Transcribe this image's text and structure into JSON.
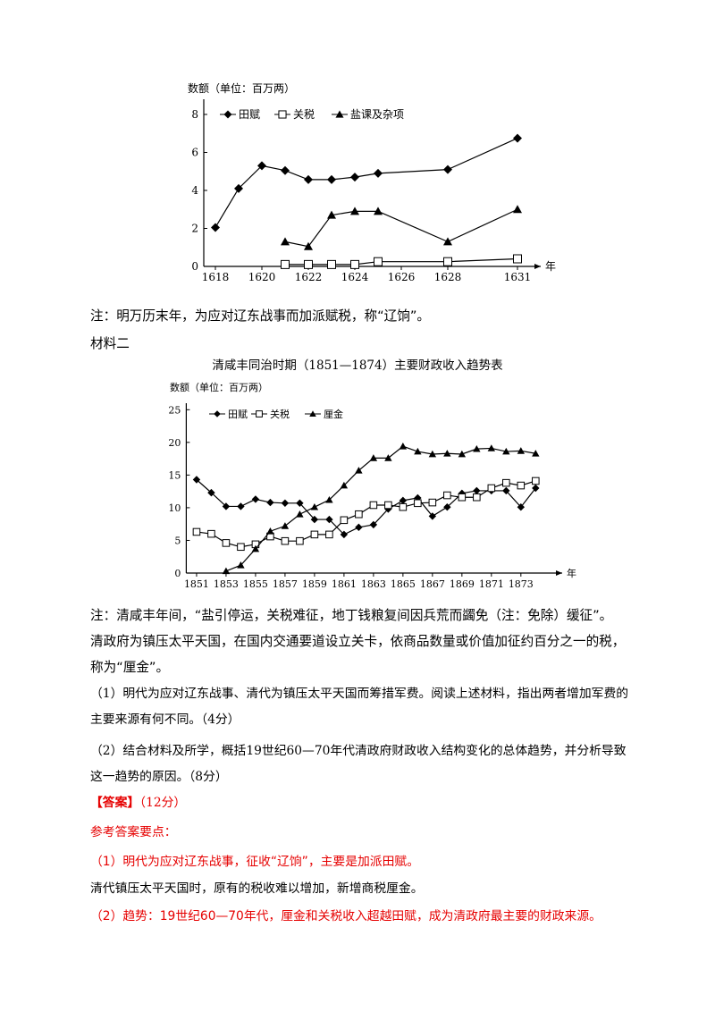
{
  "chart_data": [
    {
      "type": "line",
      "y_label": "数额（单位：百万两）",
      "x_unit": "年",
      "x": [
        1618,
        1619,
        1620,
        1621,
        1622,
        1623,
        1624,
        1625,
        1628,
        1631
      ],
      "series": [
        {
          "name": "田赋",
          "color": "#000000",
          "marker": "diamond",
          "values": [
            2.05,
            4.1,
            5.3,
            5.05,
            4.57,
            4.57,
            4.7,
            4.9,
            5.1,
            6.75
          ]
        },
        {
          "name": "关税",
          "color": "#000000",
          "marker": "square",
          "values": [
            null,
            null,
            null,
            0.1,
            0.1,
            0.1,
            0.1,
            0.25,
            0.25,
            0.4
          ]
        },
        {
          "name": "盐课及杂项",
          "color": "#000000",
          "marker": "triangle",
          "values": [
            null,
            null,
            null,
            1.3,
            1.05,
            2.7,
            2.9,
            2.9,
            1.3,
            3.0
          ]
        }
      ],
      "xlim": [
        1617.5,
        1632
      ],
      "xticks": [
        1618,
        1620,
        1622,
        1624,
        1626,
        1628,
        1631
      ],
      "ylim": [
        0,
        8.8
      ],
      "yticks": [
        0,
        2,
        4,
        6,
        8
      ],
      "grid": false
    },
    {
      "type": "line",
      "title": "清咸丰同治时期（1851—1874）主要财政收入趋势表",
      "y_label": "数额（单位：百万两）",
      "x_unit": "年",
      "x": [
        1851,
        1852,
        1853,
        1854,
        1855,
        1856,
        1857,
        1858,
        1859,
        1860,
        1861,
        1862,
        1863,
        1864,
        1865,
        1866,
        1867,
        1868,
        1869,
        1870,
        1871,
        1872,
        1873,
        1874
      ],
      "series": [
        {
          "name": "田赋",
          "color": "#000000",
          "marker": "diamond",
          "values": [
            14.3,
            12.3,
            10.2,
            10.2,
            11.3,
            10.8,
            10.7,
            10.7,
            8.2,
            8.2,
            5.9,
            7.0,
            7.4,
            9.8,
            11.1,
            11.5,
            8.7,
            10.1,
            12.2,
            12.6,
            12.6,
            12.6,
            10.1,
            13.0
          ]
        },
        {
          "name": "关税",
          "color": "#000000",
          "marker": "square",
          "values": [
            6.3,
            6.0,
            4.6,
            4.0,
            4.4,
            5.6,
            4.9,
            4.9,
            5.9,
            5.9,
            8.1,
            9.0,
            10.4,
            10.4,
            10.1,
            10.7,
            10.8,
            11.9,
            11.6,
            11.6,
            13.0,
            13.8,
            13.4,
            14.1
          ]
        },
        {
          "name": "厘金",
          "color": "#000000",
          "marker": "triangle",
          "values": [
            null,
            null,
            0.3,
            1.2,
            3.7,
            6.4,
            7.2,
            9.0,
            10.1,
            11.2,
            13.4,
            15.7,
            17.6,
            17.6,
            19.4,
            18.6,
            18.2,
            18.3,
            18.2,
            19.0,
            19.1,
            18.6,
            18.7,
            18.3
          ]
        }
      ],
      "xlim": [
        1850.3,
        1875.8
      ],
      "xticks": [
        1851,
        1853,
        1855,
        1857,
        1859,
        1861,
        1863,
        1865,
        1867,
        1869,
        1871,
        1873
      ],
      "ylim": [
        0,
        26
      ],
      "yticks": [
        0,
        5,
        10,
        15,
        20,
        25
      ],
      "grid": false
    }
  ],
  "note1": "注：明万历末年，为应对辽东战事而加派赋税，称“辽饷”。",
  "section2": "材料二",
  "note2": "注：清咸丰年间，“盐引停运，关税难征，地丁钱粮复间因兵荒而蠲免（注：免除）缓征”。",
  "para2": "清政府为镇压太平天国，在国内交通要道设立关卡，依商品数量或价值加征约百分之一的税，称为“厘金”。",
  "q1": "（1）明代为应对辽东战事、清代为镇压太平天国而筹措军费。阅读上述材料，指出两者增加军费的主要来源有何不同。（4分）",
  "q2": "（2）结合材料及所学，概括19世纪60—70年代清政府财政收入结构变化的总体趋势，并分析导致这一趋势的原因。（8分）",
  "answer_label": "【答案】",
  "answer_score": "（12分）",
  "ref_header": "参考答案要点：",
  "a1": "（1）明代为应对辽东战事，征收“辽饷”，主要是加派田赋。",
  "a1b": "清代镇压太平天国时，原有的税收难以增加，新增商税厘金。",
  "a2": "（2）趋势：19世纪60—70年代，厘金和关税收入超越田赋，成为清政府最主要的财政来源。"
}
